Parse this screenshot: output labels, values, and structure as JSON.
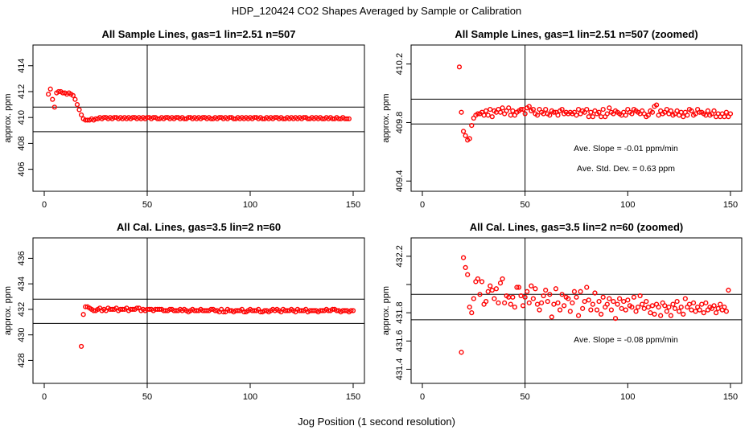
{
  "figure": {
    "title": "HDP_120424  CO2 Shapes Averaged by Sample or Calibration",
    "xlabel": "Jog Position (1 second resolution)",
    "colors": {
      "points": "#ff0000",
      "axes": "#000000",
      "background": "#ffffff"
    }
  },
  "chart_data": [
    {
      "type": "scatter",
      "title": "All Sample Lines, gas=1 lin=2.51 n=507",
      "ylabel": "approx. ppm",
      "xlim": [
        0,
        150
      ],
      "ylim": [
        404.3,
        415.6
      ],
      "xticks": [
        0,
        50,
        100,
        150
      ],
      "yticks": [
        406,
        408,
        410,
        412,
        414
      ],
      "vline": 50,
      "hlines": [
        410.8,
        408.9
      ],
      "annotations": [],
      "series": [
        {
          "x_start": 2,
          "values": [
            411.8,
            412.2,
            411.4,
            410.8,
            411.9,
            412.0,
            412.0,
            411.9,
            411.9,
            411.8,
            411.9,
            411.8,
            411.7,
            411.4,
            411.0,
            410.6,
            410.2,
            409.9,
            409.8,
            409.8,
            409.8,
            409.9,
            409.8,
            409.9,
            409.9,
            410.0,
            409.9,
            410.0,
            410.0,
            409.9,
            410.0,
            409.9,
            410.0,
            410.0,
            409.9,
            410.0,
            409.9,
            410.0,
            409.9,
            410.0,
            409.9,
            410.0,
            410.0,
            409.9,
            410.0,
            409.9,
            410.0,
            409.9,
            410.0,
            410.0,
            409.9,
            410.0,
            410.0,
            409.9,
            409.9,
            410.0,
            409.9,
            410.0,
            410.0,
            409.9,
            410.0,
            409.9,
            410.0,
            410.0,
            409.9,
            410.0,
            409.9,
            409.9,
            410.0,
            410.0,
            409.9,
            410.0,
            409.9,
            410.0,
            409.9,
            410.0,
            410.0,
            409.9,
            410.0,
            409.9,
            409.9,
            410.0,
            409.9,
            410.0,
            410.0,
            409.9,
            410.0,
            409.9,
            410.0,
            410.0,
            409.9,
            409.9,
            410.0,
            409.9,
            410.0,
            409.9,
            410.0,
            409.9,
            410.0,
            409.9,
            410.0,
            410.0,
            409.9,
            410.0,
            409.9,
            409.9,
            410.0,
            409.9,
            410.0,
            409.9,
            410.0,
            410.0,
            409.9,
            410.0,
            409.9,
            409.9,
            410.0,
            409.9,
            410.0,
            409.9,
            410.0,
            409.9,
            410.0,
            409.9,
            410.0,
            410.0,
            409.9,
            409.9,
            410.0,
            409.9,
            410.0,
            409.9,
            410.0,
            409.9,
            409.9,
            410.0,
            409.9,
            410.0,
            409.9,
            409.9,
            410.0,
            409.9,
            409.9,
            410.0,
            409.9,
            409.9,
            409.9
          ]
        }
      ]
    },
    {
      "type": "scatter",
      "title": "All Sample Lines, gas=1 lin=2.51 n=507 (zoomed)",
      "ylabel": "approx. ppm",
      "xlim": [
        0,
        150
      ],
      "ylim": [
        409.33,
        410.33
      ],
      "xticks": [
        0,
        50,
        100,
        150
      ],
      "yticks": [
        409.4,
        409.8,
        410.2
      ],
      "vline": 50,
      "hlines": [
        409.96,
        409.79
      ],
      "annotations": [
        "Ave. Slope =  -0.01  ppm/min",
        "Ave. Std. Dev. =  0.63  ppm"
      ],
      "series": [
        {
          "x_start": 18,
          "values": [
            410.18,
            409.87,
            409.74,
            409.71,
            409.68,
            409.69,
            409.78,
            409.83,
            409.85,
            409.86,
            409.86,
            409.87,
            409.85,
            409.88,
            409.85,
            409.89,
            409.84,
            409.88,
            409.87,
            409.89,
            409.87,
            409.9,
            409.86,
            409.88,
            409.9,
            409.85,
            409.88,
            409.85,
            409.87,
            409.88,
            409.89,
            409.89,
            409.86,
            409.9,
            409.91,
            409.88,
            409.89,
            409.86,
            409.85,
            409.89,
            409.87,
            409.86,
            409.89,
            409.86,
            409.85,
            409.88,
            409.87,
            409.87,
            409.85,
            409.88,
            409.89,
            409.86,
            409.87,
            409.86,
            409.87,
            409.86,
            409.87,
            409.85,
            409.89,
            409.86,
            409.88,
            409.87,
            409.89,
            409.84,
            409.87,
            409.84,
            409.88,
            409.86,
            409.87,
            409.84,
            409.89,
            409.84,
            409.86,
            409.9,
            409.87,
            409.86,
            409.88,
            409.87,
            409.86,
            409.85,
            409.87,
            409.85,
            409.89,
            409.87,
            409.86,
            409.89,
            409.88,
            409.87,
            409.86,
            409.88,
            409.86,
            409.84,
            409.85,
            409.88,
            409.87,
            409.91,
            409.92,
            409.85,
            409.88,
            409.86,
            409.87,
            409.89,
            409.86,
            409.88,
            409.85,
            409.86,
            409.88,
            409.85,
            409.87,
            409.84,
            409.87,
            409.85,
            409.89,
            409.88,
            409.85,
            409.86,
            409.89,
            409.87,
            409.87,
            409.86,
            409.85,
            409.88,
            409.85,
            409.86,
            409.88,
            409.84,
            409.86,
            409.84,
            409.86,
            409.84,
            409.87,
            409.84,
            409.86
          ]
        }
      ]
    },
    {
      "type": "scatter",
      "title": "All Cal. Lines, gas=3.5 lin=2 n=60",
      "ylabel": "approx. ppm",
      "xlim": [
        0,
        150
      ],
      "ylim": [
        426.2,
        437.6
      ],
      "xticks": [
        0,
        50,
        100,
        150
      ],
      "yticks": [
        428,
        430,
        432,
        434,
        436
      ],
      "vline": 50,
      "hlines": [
        432.8,
        430.9
      ],
      "annotations": [],
      "series": [
        {
          "x_start": 18,
          "values": [
            429.1,
            431.6,
            432.2,
            432.2,
            432.1,
            432.0,
            431.9,
            431.9,
            432.0,
            432.1,
            431.9,
            432.0,
            431.9,
            432.1,
            432.0,
            432.0,
            432.0,
            432.1,
            431.9,
            432.0,
            432.0,
            432.0,
            432.1,
            431.9,
            432.0,
            432.0,
            432.0,
            432.1,
            432.1,
            431.9,
            432.0,
            431.9,
            432.0,
            432.0,
            432.0,
            431.9,
            432.0,
            432.0,
            432.0,
            432.0,
            431.9,
            431.9,
            431.9,
            432.0,
            432.0,
            431.9,
            431.9,
            431.9,
            432.0,
            431.9,
            432.0,
            431.9,
            431.8,
            431.9,
            432.0,
            431.9,
            431.9,
            431.9,
            432.0,
            431.9,
            431.9,
            431.9,
            431.9,
            432.0,
            432.0,
            431.9,
            431.9,
            431.8,
            432.0,
            431.8,
            431.8,
            432.0,
            431.9,
            431.9,
            431.8,
            431.9,
            431.9,
            431.9,
            432.0,
            431.8,
            431.8,
            431.9,
            432.0,
            431.9,
            431.9,
            431.9,
            432.0,
            431.8,
            431.8,
            431.9,
            431.9,
            431.8,
            431.9,
            432.0,
            431.9,
            432.0,
            431.9,
            431.8,
            432.0,
            431.9,
            431.9,
            431.9,
            432.0,
            431.9,
            431.8,
            432.0,
            431.9,
            431.9,
            431.9,
            432.0,
            431.8,
            431.9,
            431.9,
            431.9,
            431.9,
            431.8,
            431.9,
            431.9,
            431.9,
            432.0,
            431.9,
            431.9,
            432.0,
            432.0,
            431.9,
            431.9,
            431.8,
            431.9,
            431.9,
            431.9,
            431.8,
            431.9,
            431.9
          ]
        }
      ]
    },
    {
      "type": "scatter",
      "title": "All Cal. Lines, gas=3.5 lin=2 n=60 (zoomed)",
      "ylabel": "approx. ppm",
      "xlim": [
        0,
        150
      ],
      "ylim": [
        431.3,
        432.33
      ],
      "xticks": [
        0,
        50,
        100,
        150
      ],
      "yticks": [
        431.4,
        431.6,
        431.8,
        432.0,
        432.2
      ],
      "ytick_labels": [
        "431.4",
        "431.6",
        "431.8",
        "",
        "432.2"
      ],
      "vline": 50,
      "hlines": [
        431.93,
        431.75
      ],
      "annotations": [
        "Ave. Slope =  -0.08  ppm/min"
      ],
      "series": [
        {
          "x_start": 19,
          "values": [
            431.52,
            432.19,
            432.12,
            432.07,
            431.84,
            431.8,
            431.9,
            432.02,
            432.04,
            431.93,
            432.02,
            431.86,
            431.88,
            431.95,
            431.99,
            431.96,
            431.9,
            431.97,
            431.87,
            432.01,
            432.04,
            431.87,
            431.92,
            431.91,
            431.86,
            431.91,
            431.84,
            431.98,
            431.98,
            431.92,
            431.85,
            431.91,
            431.95,
            431.87,
            431.99,
            431.9,
            431.97,
            431.86,
            431.82,
            431.87,
            431.92,
            431.96,
            431.88,
            431.93,
            431.77,
            431.86,
            431.97,
            431.87,
            431.82,
            431.93,
            431.85,
            431.91,
            431.9,
            431.81,
            431.87,
            431.95,
            431.91,
            431.78,
            431.95,
            431.83,
            431.88,
            431.98,
            431.89,
            431.82,
            431.86,
            431.94,
            431.82,
            431.88,
            431.79,
            431.91,
            431.84,
            431.86,
            431.9,
            431.82,
            431.88,
            431.76,
            431.86,
            431.9,
            431.83,
            431.88,
            431.82,
            431.89,
            431.85,
            431.84,
            431.91,
            431.81,
            431.84,
            431.92,
            431.86,
            431.83,
            431.88,
            431.84,
            431.8,
            431.85,
            431.79,
            431.86,
            431.84,
            431.78,
            431.87,
            431.85,
            431.81,
            431.84,
            431.78,
            431.86,
            431.83,
            431.88,
            431.81,
            431.84,
            431.79,
            431.9,
            431.84,
            431.86,
            431.82,
            431.87,
            431.81,
            431.84,
            431.82,
            431.86,
            431.8,
            431.87,
            431.82,
            431.84,
            431.83,
            431.85,
            431.8,
            431.83,
            431.86,
            431.82,
            431.84,
            431.81,
            431.96
          ]
        }
      ]
    }
  ]
}
